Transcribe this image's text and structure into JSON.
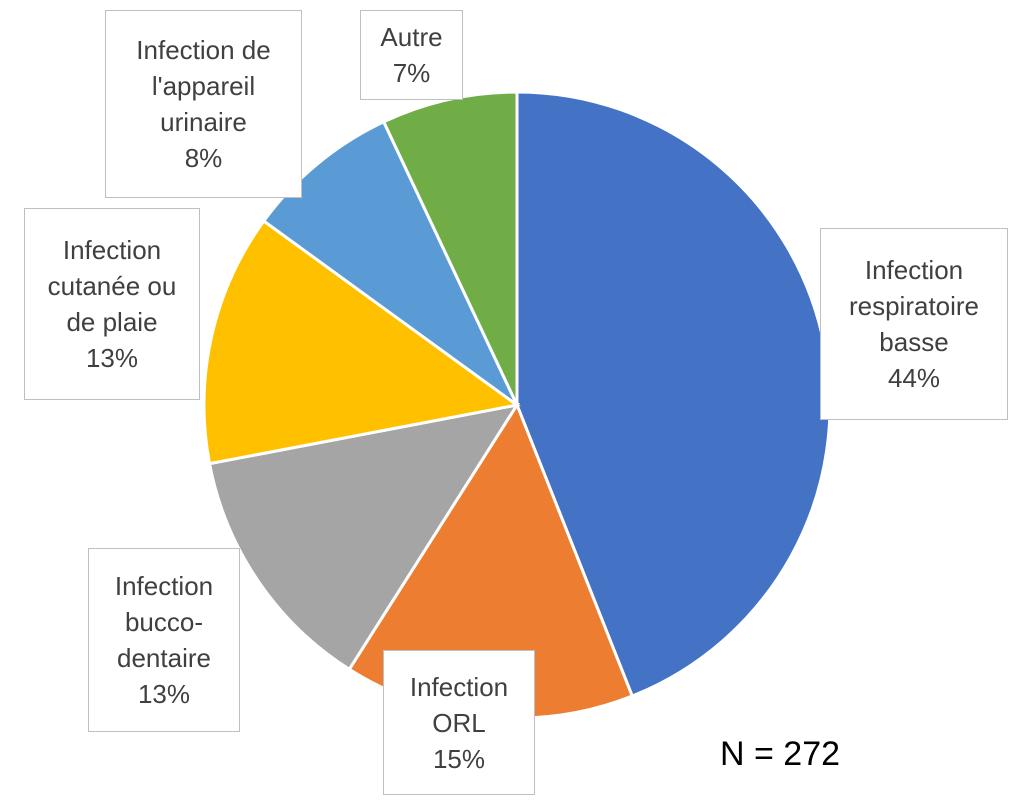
{
  "chart_data": {
    "type": "pie",
    "categories": [
      "Infection respiratoire basse",
      "Infection ORL",
      "Infection bucco-dentaire",
      "Infection cutanée ou de plaie",
      "Infection de l'appareil urinaire",
      "Autre"
    ],
    "values": [
      44,
      15,
      13,
      13,
      8,
      7
    ],
    "value_labels": [
      "44%",
      "15%",
      "13%",
      "13%",
      "8%",
      "7%"
    ],
    "colors": [
      "#4472c4",
      "#ed7d31",
      "#a5a5a5",
      "#ffc000",
      "#5b9bd5",
      "#70ad47"
    ],
    "annotation": "N = 272"
  }
}
